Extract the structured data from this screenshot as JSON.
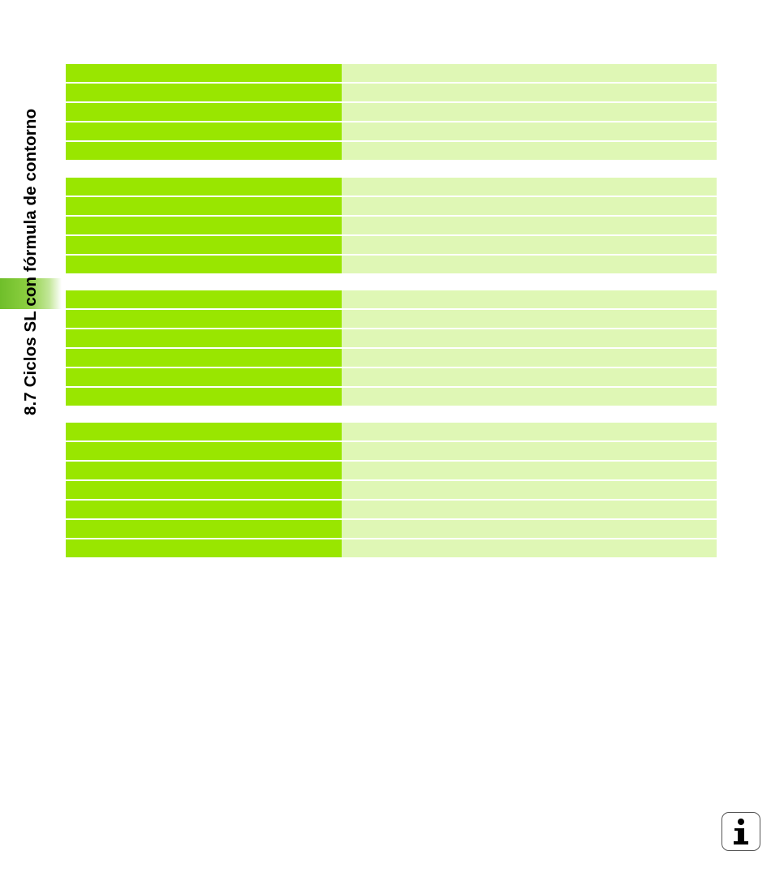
{
  "section_title": "8.7 Ciclos SL con fórmula de contorno",
  "tables": [
    {
      "rows": [
        [
          "",
          ""
        ],
        [
          "",
          ""
        ],
        [
          "",
          ""
        ],
        [
          "",
          ""
        ],
        [
          "",
          ""
        ]
      ]
    },
    {
      "rows": [
        [
          "",
          ""
        ],
        [
          "",
          ""
        ],
        [
          "",
          ""
        ],
        [
          "",
          ""
        ],
        [
          "",
          ""
        ]
      ]
    },
    {
      "rows": [
        [
          "",
          ""
        ],
        [
          "",
          ""
        ],
        [
          "",
          ""
        ],
        [
          "",
          ""
        ],
        [
          "",
          ""
        ],
        [
          "",
          ""
        ]
      ]
    },
    {
      "rows": [
        [
          "",
          ""
        ],
        [
          "",
          ""
        ],
        [
          "",
          ""
        ],
        [
          "",
          ""
        ],
        [
          "",
          ""
        ],
        [
          "",
          ""
        ],
        [
          "",
          ""
        ]
      ]
    }
  ],
  "colors": {
    "header_green": "#99e600",
    "body_light_green": "#dff7b5",
    "tab_green": "#6fbe2a"
  },
  "info_icon": "info-icon"
}
